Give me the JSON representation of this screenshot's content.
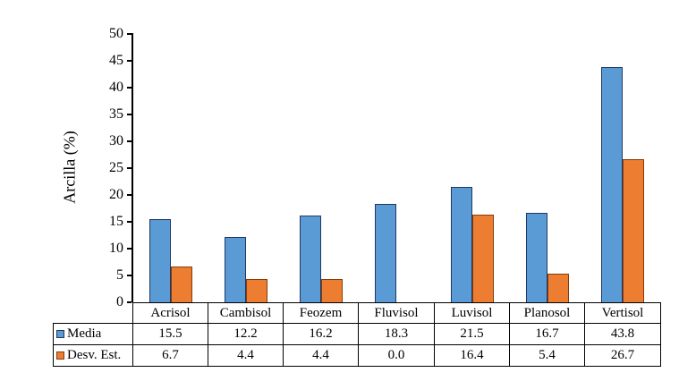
{
  "chart_data": {
    "type": "bar",
    "title": "",
    "xlabel": "",
    "ylabel": "Arcilla (%)",
    "categories": [
      "Acrisol",
      "Cambisol",
      "Feozem",
      "Fluvisol",
      "Luvisol",
      "Planosol",
      "Vertisol"
    ],
    "series": [
      {
        "name": "Media",
        "color": "#5B9BD5",
        "border_color": "#1F3864",
        "values": [
          15.5,
          12.2,
          16.2,
          18.3,
          21.5,
          16.7,
          43.8
        ]
      },
      {
        "name": "Desv. Est.",
        "color": "#ED7D31",
        "border_color": "#843C0C",
        "values": [
          6.7,
          4.4,
          4.4,
          0.0,
          16.4,
          5.4,
          26.7
        ]
      }
    ],
    "ylim": [
      0,
      50
    ],
    "yticks": [
      0,
      5,
      10,
      15,
      20,
      25,
      30,
      35,
      40,
      45,
      50
    ],
    "grid": false,
    "legend_position": "data-table-left",
    "value_decimals": 1,
    "background_color": "#ffffff",
    "axis_color": "#000000"
  }
}
